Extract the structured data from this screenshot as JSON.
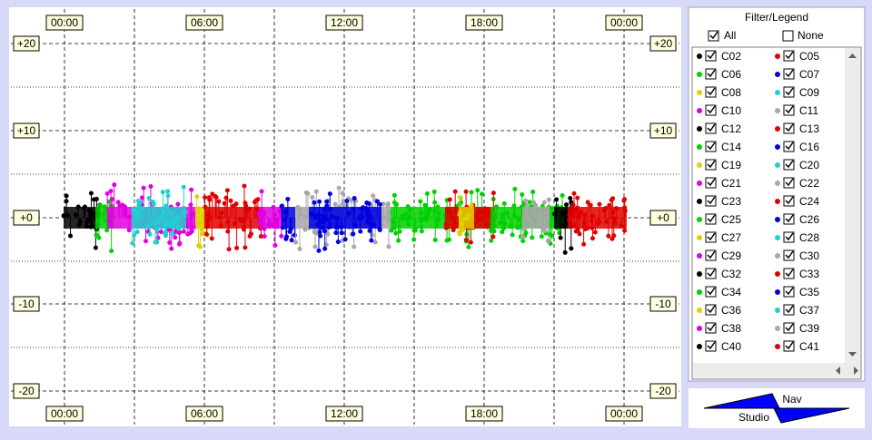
{
  "plot": {
    "x_labels_top": [
      "00:00",
      "06:00",
      "12:00",
      "18:00",
      "00:00"
    ],
    "x_labels_bottom": [
      "00:00",
      "06:00",
      "12:00",
      "18:00",
      "00:00"
    ],
    "y_labels_left": [
      "+20",
      "+10",
      "+0",
      "-10",
      "-20"
    ],
    "y_labels_right": [
      "+20",
      "+10",
      "+0",
      "-10",
      "-20"
    ]
  },
  "legend": {
    "title": "Filter/Legend",
    "all": "All",
    "none": "None",
    "items": [
      {
        "label": "C02",
        "color": "#000000"
      },
      {
        "label": "C05",
        "color": "#e00000"
      },
      {
        "label": "C06",
        "color": "#00d000"
      },
      {
        "label": "C07",
        "color": "#0000e0"
      },
      {
        "label": "C08",
        "color": "#e0d000"
      },
      {
        "label": "C09",
        "color": "#20d0d0"
      },
      {
        "label": "C10",
        "color": "#e000e0"
      },
      {
        "label": "C11",
        "color": "#a8a8a8"
      },
      {
        "label": "C12",
        "color": "#000000"
      },
      {
        "label": "C13",
        "color": "#e00000"
      },
      {
        "label": "C14",
        "color": "#00d000"
      },
      {
        "label": "C16",
        "color": "#0000e0"
      },
      {
        "label": "C19",
        "color": "#e0d000"
      },
      {
        "label": "C20",
        "color": "#20d0d0"
      },
      {
        "label": "C21",
        "color": "#e000e0"
      },
      {
        "label": "C22",
        "color": "#a8a8a8"
      },
      {
        "label": "C23",
        "color": "#000000"
      },
      {
        "label": "C24",
        "color": "#e00000"
      },
      {
        "label": "C25",
        "color": "#00d000"
      },
      {
        "label": "C26",
        "color": "#0000e0"
      },
      {
        "label": "C27",
        "color": "#e0d000"
      },
      {
        "label": "C28",
        "color": "#20d0d0"
      },
      {
        "label": "C29",
        "color": "#e000e0"
      },
      {
        "label": "C30",
        "color": "#a8a8a8"
      },
      {
        "label": "C32",
        "color": "#000000"
      },
      {
        "label": "C33",
        "color": "#e00000"
      },
      {
        "label": "C34",
        "color": "#00d000"
      },
      {
        "label": "C35",
        "color": "#0000e0"
      },
      {
        "label": "C36",
        "color": "#e0d000"
      },
      {
        "label": "C37",
        "color": "#20d0d0"
      },
      {
        "label": "C38",
        "color": "#e000e0"
      },
      {
        "label": "C39",
        "color": "#a8a8a8"
      },
      {
        "label": "C40",
        "color": "#000000"
      },
      {
        "label": "C41",
        "color": "#e00000"
      }
    ]
  },
  "nav": {
    "nav": "Nav",
    "studio": "Studio"
  }
}
